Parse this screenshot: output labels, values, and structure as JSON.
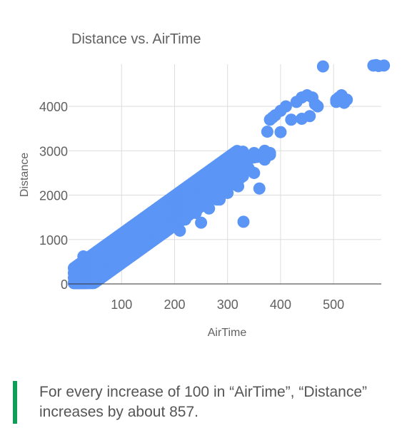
{
  "chart_data": {
    "type": "scatter",
    "title": "Distance vs. AirTime",
    "xlabel": "AirTime",
    "ylabel": "Distance",
    "xlim": [
      0,
      590
    ],
    "ylim": [
      0,
      4950
    ],
    "xticks": [
      100,
      200,
      300,
      400,
      500
    ],
    "yticks": [
      0,
      1000,
      2000,
      3000,
      4000
    ],
    "grid": true,
    "legend": "none",
    "color": "#5b95f5",
    "trend_slope_per_100": 857,
    "x": [
      12,
      15,
      18,
      20,
      22,
      25,
      28,
      30,
      32,
      35,
      38,
      40,
      45,
      50,
      55,
      60,
      65,
      70,
      75,
      80,
      85,
      90,
      95,
      100,
      105,
      110,
      115,
      120,
      125,
      130,
      135,
      140,
      145,
      150,
      155,
      160,
      165,
      170,
      175,
      180,
      185,
      190,
      195,
      200,
      205,
      210,
      215,
      220,
      225,
      230,
      235,
      240,
      245,
      250,
      255,
      260,
      265,
      270,
      275,
      280,
      285,
      290,
      295,
      300,
      305,
      310,
      315,
      320,
      325,
      330,
      335,
      340,
      345,
      350,
      355,
      360,
      365,
      370,
      375,
      380,
      60,
      80,
      100,
      120,
      140,
      160,
      180,
      200,
      220,
      240,
      260,
      280,
      300,
      320,
      90,
      110,
      130,
      150,
      170,
      190,
      210,
      230,
      250,
      270,
      290,
      310,
      330,
      350,
      28,
      62,
      85,
      130,
      115,
      150,
      170,
      190,
      210,
      250,
      265,
      285,
      330,
      340,
      350,
      360,
      370,
      380,
      375,
      370,
      380,
      390,
      400,
      410,
      420,
      430,
      440,
      450,
      460,
      470,
      385,
      400,
      440,
      455,
      465,
      505,
      510,
      515,
      520,
      525,
      505,
      520,
      480,
      580,
      575,
      585,
      595
    ],
    "y": [
      40,
      60,
      80,
      100,
      120,
      150,
      180,
      200,
      220,
      250,
      280,
      300,
      330,
      370,
      420,
      470,
      520,
      570,
      620,
      660,
      700,
      760,
      800,
      850,
      900,
      950,
      1000,
      1050,
      1100,
      1150,
      1200,
      1250,
      1300,
      1350,
      1400,
      1450,
      1500,
      1550,
      1600,
      1650,
      1700,
      1750,
      1800,
      1850,
      1900,
      1950,
      2000,
      2050,
      2100,
      2150,
      2200,
      2250,
      2300,
      2350,
      2400,
      2450,
      2500,
      2550,
      2600,
      2650,
      2680,
      2700,
      2720,
      2750,
      2760,
      2770,
      2780,
      2790,
      2800,
      2810,
      2820,
      2830,
      2840,
      2850,
      2860,
      2870,
      2880,
      2890,
      2900,
      2910,
      250,
      400,
      550,
      700,
      850,
      1000,
      1150,
      1300,
      1450,
      1600,
      1750,
      1900,
      2050,
      2200,
      700,
      900,
      1100,
      1300,
      1500,
      1700,
      1900,
      2100,
      2300,
      2500,
      2700,
      2900,
      2950,
      2950,
      620,
      500,
      400,
      1280,
      1000,
      1500,
      1600,
      1400,
      1200,
      1380,
      1700,
      1900,
      1400,
      2600,
      2500,
      2150,
      2800,
      2950,
      3430,
      3000,
      3700,
      3800,
      3420,
      4000,
      3700,
      4100,
      4200,
      4250,
      4200,
      4000,
      3750,
      3900,
      3720,
      3780,
      4050,
      4150,
      4200,
      4250,
      4100,
      4150,
      4100,
      4080,
      4900,
      4930,
      4920,
      4910,
      4920
    ],
    "series": [
      {
        "color": "#5b95f5"
      }
    ]
  },
  "insight": {
    "text": "For every increase of 100 in “AirTime”, “Distance” increases by about 857."
  }
}
